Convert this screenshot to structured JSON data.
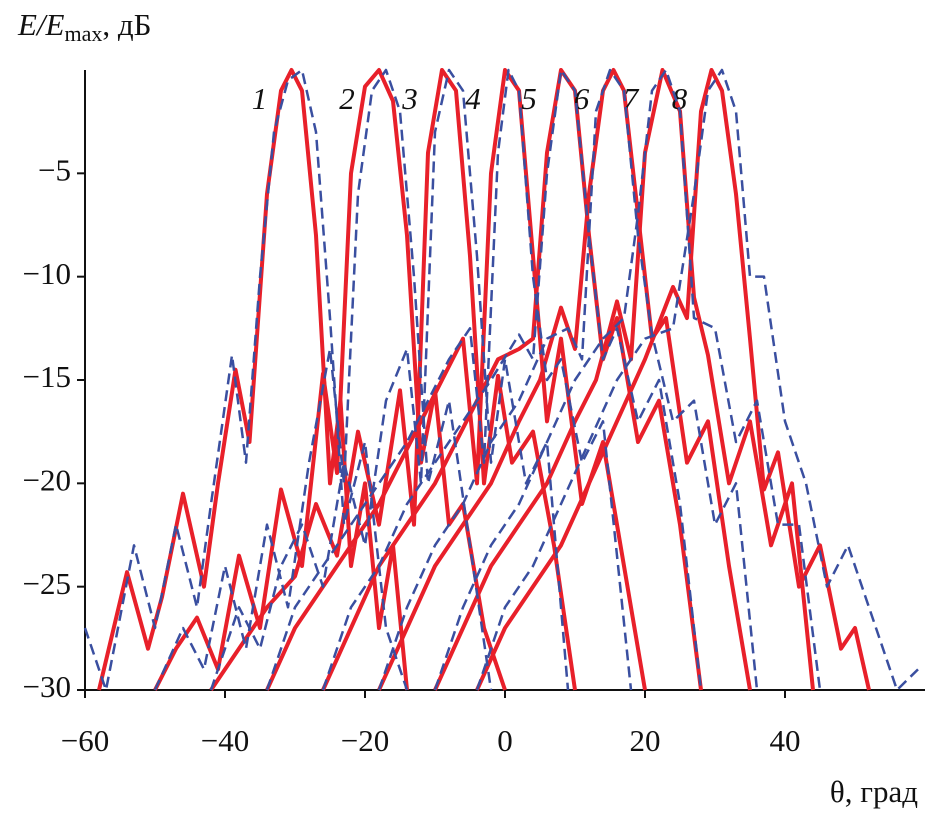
{
  "chart_data": {
    "type": "line",
    "ylabel": {
      "main": "E/E",
      "sub": "max",
      "unit": ", дБ"
    },
    "xlabel": "θ, град",
    "xlim": [
      -60,
      60
    ],
    "ylim": [
      -30,
      0
    ],
    "xticks": [
      {
        "value": -60,
        "label": "−60"
      },
      {
        "value": -40,
        "label": "−40"
      },
      {
        "value": -20,
        "label": "−20"
      },
      0,
      20,
      40
    ],
    "yticks": [
      {
        "value": -30,
        "label": "−30"
      },
      {
        "value": -25,
        "label": "−25"
      },
      {
        "value": -20,
        "label": "−20"
      },
      {
        "value": -15,
        "label": "−15"
      },
      {
        "value": -10,
        "label": "−10"
      },
      {
        "value": -5,
        "label": "−5"
      }
    ],
    "series": [
      {
        "name": "1",
        "color": "#e8202a",
        "style": "solid",
        "x": [
          -58,
          -54,
          -51,
          -49,
          -46,
          -43,
          -41,
          -38.5,
          -36.5,
          -34,
          -32,
          -30.5,
          -29,
          -27,
          -25,
          -23.5,
          -22,
          -20,
          -18,
          -16,
          -14
        ],
        "values": [
          -30,
          -24.3,
          -28,
          -25.5,
          -20.5,
          -25,
          -20,
          -14.5,
          -18,
          -6,
          -1,
          0,
          -1,
          -8,
          -20,
          -16,
          -24,
          -20,
          -27,
          -23,
          -30
        ]
      },
      {
        "name": "2",
        "color": "#e8202a",
        "style": "solid",
        "x": [
          -50,
          -47,
          -44,
          -41,
          -38,
          -35,
          -32,
          -29,
          -26,
          -24,
          -22,
          -20,
          -18,
          -16,
          -14,
          -12,
          -10,
          -8,
          -6,
          -3,
          0
        ],
        "values": [
          -30,
          -28,
          -26.5,
          -29,
          -23.5,
          -27,
          -20.3,
          -24,
          -14.7,
          -19.5,
          -5,
          -0.8,
          0,
          -1.5,
          -8,
          -19,
          -15.5,
          -22,
          -21,
          -27,
          -30
        ]
      },
      {
        "name": "3",
        "color": "#e8202a",
        "style": "solid",
        "x": [
          -42,
          -38,
          -34,
          -30,
          -27,
          -24,
          -21,
          -18,
          -15,
          -13,
          -11,
          -9,
          -7,
          -5,
          -3,
          -1,
          1,
          4,
          7,
          10
        ],
        "values": [
          -30,
          -28,
          -26,
          -24.5,
          -21,
          -23.5,
          -17.5,
          -22,
          -15.5,
          -22,
          -4,
          0,
          -1,
          -9,
          -20,
          -14.8,
          -19,
          -17.5,
          -23,
          -30
        ]
      },
      {
        "name": "4",
        "color": "#e8202a",
        "style": "solid",
        "x": [
          -34,
          -30,
          -26,
          -22,
          -18,
          -15,
          -12,
          -9,
          -6,
          -4,
          -2,
          0,
          2,
          4,
          6,
          8,
          11,
          14,
          17,
          20
        ],
        "values": [
          -30,
          -27,
          -25,
          -23,
          -21,
          -19,
          -17,
          -15,
          -13,
          -20,
          -5,
          0,
          -1,
          -9,
          -17,
          -13,
          -21,
          -18,
          -24,
          -30
        ]
      },
      {
        "name": "5",
        "color": "#e8202a",
        "style": "solid",
        "x": [
          -26,
          -22,
          -18,
          -14,
          -10,
          -7,
          -4,
          -1,
          2,
          4,
          6,
          8,
          10,
          12,
          14,
          16,
          19,
          22,
          25,
          28
        ],
        "values": [
          -30,
          -27,
          -24,
          -22,
          -20,
          -18,
          -16,
          -14,
          -13.5,
          -13,
          -4,
          0,
          -1,
          -8,
          -14,
          -12,
          -18,
          -16,
          -22,
          -30
        ]
      },
      {
        "name": "6",
        "color": "#e8202a",
        "style": "solid",
        "x": [
          -18,
          -14,
          -10,
          -6,
          -2,
          2,
          5,
          8,
          10,
          12,
          14,
          15.5,
          17,
          19,
          21,
          23,
          26,
          29,
          32,
          35
        ],
        "values": [
          -30,
          -27,
          -24,
          -22,
          -20,
          -17,
          -15,
          -11.5,
          -13.5,
          -6,
          -1,
          0,
          -1,
          -7,
          -13,
          -12,
          -19,
          -17,
          -24,
          -30
        ]
      },
      {
        "name": "7",
        "color": "#e8202a",
        "style": "solid",
        "x": [
          -10,
          -6,
          -2,
          2,
          6,
          10,
          13,
          16,
          18,
          20,
          22.5,
          25,
          27,
          29,
          32,
          35,
          38,
          41,
          44
        ],
        "values": [
          -30,
          -27,
          -24,
          -22,
          -20,
          -17,
          -15,
          -11.2,
          -14,
          -4,
          0,
          -2,
          -11,
          -13.8,
          -20,
          -17,
          -23,
          -20,
          -30
        ]
      },
      {
        "name": "8",
        "color": "#e8202a",
        "style": "solid",
        "x": [
          -4,
          0,
          4,
          8,
          12,
          16,
          20,
          24,
          26,
          28,
          29.5,
          31,
          33,
          35,
          37,
          39,
          42,
          45,
          48,
          50,
          52
        ],
        "values": [
          -30,
          -27,
          -25,
          -23,
          -20,
          -17,
          -14,
          -10.5,
          -12,
          -2,
          0,
          -1,
          -6,
          -13,
          -20.3,
          -18.5,
          -25,
          -23,
          -28,
          -27,
          -30
        ]
      },
      {
        "color": "#3a4fa0",
        "style": "dashed",
        "x": [
          -60,
          -57,
          -53,
          -50,
          -47,
          -44,
          -42,
          -39,
          -37,
          -35,
          -33,
          -31,
          -29,
          -27,
          -25,
          -23,
          -20,
          -17,
          -14
        ],
        "values": [
          -27,
          -30,
          -23,
          -27,
          -22,
          -26,
          -21,
          -13.8,
          -19,
          -10,
          -3,
          -0.5,
          0,
          -3,
          -12,
          -22,
          -18,
          -27,
          -30
        ]
      },
      {
        "color": "#3a4fa0",
        "style": "dashed",
        "x": [
          -50,
          -46,
          -43,
          -40,
          -37,
          -34,
          -31,
          -28,
          -25,
          -23,
          -21,
          -19,
          -17,
          -15,
          -13,
          -11,
          -8,
          -5,
          -2
        ],
        "values": [
          -30,
          -27,
          -29,
          -24,
          -28,
          -22,
          -26,
          -19,
          -13.5,
          -20,
          -6,
          -1,
          0,
          -2,
          -10,
          -20,
          -16,
          -23,
          -30
        ]
      },
      {
        "color": "#3a4fa0",
        "style": "dashed",
        "x": [
          -42,
          -38,
          -35,
          -32,
          -29,
          -26,
          -23,
          -20,
          -17,
          -14,
          -12,
          -10,
          -8,
          -6,
          -4,
          -2,
          0,
          3,
          6,
          9
        ],
        "values": [
          -30,
          -26,
          -28,
          -24,
          -22,
          -25,
          -19,
          -23,
          -16,
          -13.5,
          -20,
          -3,
          0,
          -1,
          -9,
          -19,
          -14,
          -20,
          -18,
          -30
        ]
      },
      {
        "color": "#3a4fa0",
        "style": "dashed",
        "x": [
          -34,
          -30,
          -26,
          -22,
          -18,
          -14,
          -11,
          -8,
          -5,
          -3,
          -1,
          0.5,
          2,
          4,
          6,
          8,
          11,
          14,
          18
        ],
        "values": [
          -30,
          -26,
          -24,
          -22,
          -20,
          -18,
          -16,
          -14,
          -12.5,
          -19,
          -4,
          0,
          -1,
          -10,
          -15,
          -14,
          -19,
          -17,
          -30
        ]
      },
      {
        "color": "#3a4fa0",
        "style": "dashed",
        "x": [
          -26,
          -22,
          -18,
          -14,
          -10,
          -6,
          -2,
          2,
          4,
          6,
          8,
          10,
          12,
          14,
          16,
          19,
          22,
          25,
          28
        ],
        "values": [
          -30,
          -26,
          -24,
          -21,
          -19,
          -17,
          -15,
          -12.8,
          -14,
          -5,
          0,
          -1,
          -8,
          -14,
          -12.5,
          -17,
          -15,
          -21,
          -30
        ]
      },
      {
        "color": "#3a4fa0",
        "style": "dashed",
        "x": [
          -18,
          -14,
          -10,
          -6,
          -2,
          2,
          6,
          9,
          11,
          13,
          15,
          17,
          19,
          21,
          24,
          27,
          30,
          33,
          36
        ],
        "values": [
          -30,
          -26,
          -23,
          -21,
          -18,
          -16,
          -13,
          -12.5,
          -14,
          -2,
          0,
          -1,
          -8,
          -12.8,
          -17,
          -16,
          -22,
          -20,
          -30
        ]
      },
      {
        "color": "#3a4fa0",
        "style": "dashed",
        "x": [
          -10,
          -6,
          -2,
          2,
          6,
          10,
          14,
          17,
          19,
          21,
          23,
          25,
          27,
          30,
          33,
          36,
          39,
          42,
          45
        ],
        "values": [
          -30,
          -26,
          -23,
          -21,
          -18,
          -15,
          -13,
          -12,
          -7,
          -1,
          0,
          -2,
          -12,
          -12.5,
          -18,
          -16,
          -22,
          -22,
          -30
        ]
      },
      {
        "color": "#3a4fa0",
        "style": "dashed",
        "x": [
          -4,
          0,
          4,
          8,
          12,
          16,
          20,
          24,
          27,
          29,
          31,
          33,
          35,
          37,
          40,
          43,
          46,
          49,
          53,
          56,
          59
        ],
        "values": [
          -30,
          -26,
          -24,
          -21,
          -18,
          -15,
          -13,
          -12.5,
          -6,
          -1,
          0,
          -2,
          -10,
          -10,
          -17,
          -20,
          -25,
          -23,
          -27,
          -30,
          -29
        ]
      }
    ]
  }
}
